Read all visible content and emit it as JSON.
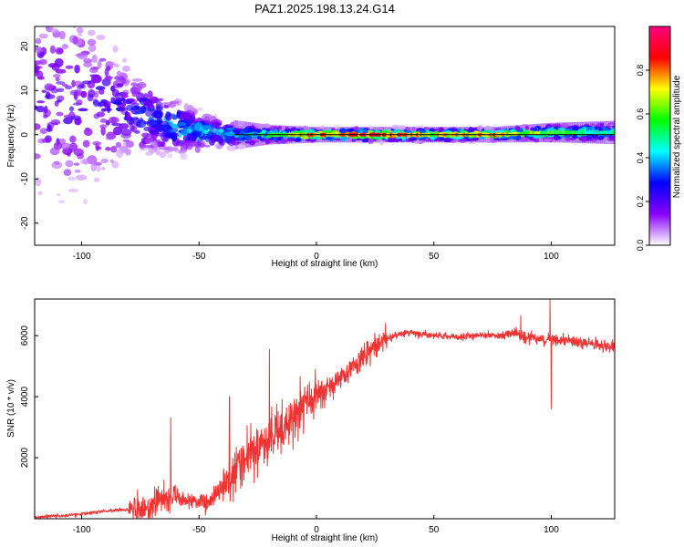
{
  "figure_title": "PAZ1.2025.198.13.24.G14",
  "chart_data": [
    {
      "type": "heatmap",
      "xlabel": "Height of straight line (km)",
      "ylabel": "Frequency (Hz)",
      "xlim": [
        -120,
        127
      ],
      "ylim": [
        -25,
        24.5
      ],
      "xticks": [
        -100,
        -50,
        0,
        50,
        100
      ],
      "yticks": [
        -20,
        -10,
        0,
        10,
        20
      ],
      "colorbar": {
        "label": "Normalized spectral amplitude",
        "range": [
          0,
          1
        ],
        "ticks": [
          0.0,
          0.2,
          0.4,
          0.6,
          0.8
        ],
        "tick_labels": [
          "0.0",
          "0.2",
          "0.4",
          "0.6",
          "0.8"
        ],
        "colors": [
          "#ffffff",
          "#8800ff",
          "#0000ff",
          "#00ffff",
          "#00ff00",
          "#ffff00",
          "#ff0000",
          "#ff0080"
        ]
      },
      "center_line_frequency_hz": 0,
      "energy_ridge": [
        {
          "x": -100,
          "freq": 8,
          "spread": 14,
          "amp": 0.2
        },
        {
          "x": -80,
          "freq": 5,
          "spread": 6,
          "amp": 0.25
        },
        {
          "x": -65,
          "freq": 3,
          "spread": 4,
          "amp": 0.35
        },
        {
          "x": -55,
          "freq": 1,
          "spread": 3,
          "amp": 0.4
        },
        {
          "x": -45,
          "freq": 0.5,
          "spread": 2,
          "amp": 0.45
        },
        {
          "x": -35,
          "freq": 0,
          "spread": 1.5,
          "amp": 0.45
        },
        {
          "x": -20,
          "freq": 0,
          "spread": 1,
          "amp": 0.55
        },
        {
          "x": 0,
          "freq": 0,
          "spread": 0.8,
          "amp": 0.8
        },
        {
          "x": 25,
          "freq": 0,
          "spread": 0.8,
          "amp": 0.9
        },
        {
          "x": 50,
          "freq": 0,
          "spread": 0.8,
          "amp": 0.7
        },
        {
          "x": 75,
          "freq": 0,
          "spread": 0.8,
          "amp": 0.75
        },
        {
          "x": 100,
          "freq": 0.5,
          "spread": 1,
          "amp": 0.6
        },
        {
          "x": 127,
          "freq": 0.5,
          "spread": 1.2,
          "amp": 0.45
        }
      ]
    },
    {
      "type": "line",
      "xlabel": "Height of straight line (km)",
      "ylabel": "SNR (10 * v/v)",
      "xlim": [
        -120,
        127
      ],
      "ylim": [
        0,
        7200
      ],
      "xticks": [
        -100,
        -50,
        0,
        50,
        100
      ],
      "yticks": [
        2000,
        4000,
        6000
      ],
      "line_color": "#ee3333",
      "series": [
        {
          "x": [
            -120,
            -110,
            -100,
            -90,
            -80,
            -75,
            -70,
            -65,
            -60,
            -55,
            -50,
            -45,
            -40,
            -35,
            -30,
            -25,
            -20,
            -15,
            -10,
            -5,
            0,
            5,
            10,
            15,
            20,
            25,
            30,
            35,
            40,
            45,
            50,
            55,
            60,
            65,
            70,
            75,
            80,
            85,
            90,
            95,
            100,
            105,
            110,
            115,
            120,
            127
          ],
          "values": [
            50,
            100,
            150,
            250,
            300,
            350,
            450,
            700,
            750,
            600,
            500,
            550,
            1000,
            1600,
            2000,
            2300,
            2600,
            2900,
            3300,
            3700,
            4000,
            4300,
            4600,
            5000,
            5400,
            5700,
            5900,
            6050,
            6100,
            6050,
            6000,
            6000,
            5950,
            6000,
            6000,
            6000,
            6000,
            6050,
            5950,
            5900,
            5900,
            5850,
            5800,
            5750,
            5700,
            5600
          ]
        }
      ],
      "spikes": [
        {
          "x": -62,
          "value": 3300
        },
        {
          "x": -37,
          "value": 4000
        },
        {
          "x": -20,
          "value": 5550
        },
        {
          "x": 87,
          "value": 6650
        },
        {
          "x": 99.5,
          "value": 7200
        },
        {
          "x": 100,
          "value": 3600
        }
      ]
    }
  ]
}
